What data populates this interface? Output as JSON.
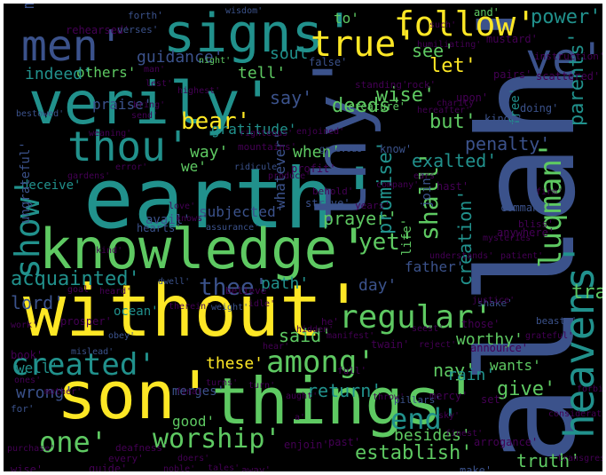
{
  "background_color": "#000000",
  "border_color": "#ffffff",
  "palette": [
    "#440154",
    "#3b528b",
    "#21918c",
    "#5ec962",
    "#fde725"
  ],
  "words": [
    {
      "text": "allah'",
      "color": "#3b528b",
      "vertical": true
    },
    {
      "text": "earth'",
      "color": "#21918c",
      "vertical": false
    },
    {
      "text": "without'",
      "color": "#fde725",
      "vertical": false
    },
    {
      "text": "knowledge'",
      "color": "#5ec962",
      "vertical": false
    },
    {
      "text": "verily'",
      "color": "#21918c",
      "vertical": false
    },
    {
      "text": "son'",
      "color": "#fde725",
      "vertical": false
    },
    {
      "text": "things'",
      "color": "#5ec962",
      "vertical": false
    },
    {
      "text": "thy'",
      "color": "#3b528b",
      "vertical": true
    },
    {
      "text": "signs'",
      "color": "#21918c",
      "vertical": false
    },
    {
      "text": "men'",
      "color": "#3b528b",
      "vertical": false
    },
    {
      "text": "heavens'",
      "color": "#21918c",
      "vertical": true
    },
    {
      "text": "ye'",
      "color": "#3b528b",
      "vertical": false
    },
    {
      "text": "thou'",
      "color": "#21918c",
      "vertical": false
    },
    {
      "text": "show'",
      "color": "#21918c",
      "vertical": true
    },
    {
      "text": "true'",
      "color": "#fde725",
      "vertical": false
    },
    {
      "text": "follow'",
      "color": "#fde725",
      "vertical": false
    },
    {
      "text": "created'",
      "color": "#21918c",
      "vertical": false
    },
    {
      "text": "regular'",
      "color": "#5ec962",
      "vertical": false
    },
    {
      "text": "among'",
      "color": "#5ec962",
      "vertical": false
    },
    {
      "text": "luqman'",
      "color": "#5ec962",
      "vertical": true
    },
    {
      "text": "one'",
      "color": "#5ec962",
      "vertical": false
    },
    {
      "text": "end'",
      "color": "#21918c",
      "vertical": false
    },
    {
      "text": "worship'",
      "color": "#5ec962",
      "vertical": false
    },
    {
      "text": "power'",
      "color": "#21918c",
      "vertical": false
    },
    {
      "text": "bear'",
      "color": "#fde725",
      "vertical": false
    },
    {
      "text": "thee'",
      "color": "#3b528b",
      "vertical": false
    },
    {
      "text": "acquainted'",
      "color": "#21918c",
      "vertical": false
    },
    {
      "text": "lord'",
      "color": "#3b528b",
      "vertical": false
    },
    {
      "text": "these'",
      "color": "#fde725",
      "vertical": false
    },
    {
      "text": "establish'",
      "color": "#5ec962",
      "vertical": false
    },
    {
      "text": "prayer'",
      "color": "#5ec962",
      "vertical": false
    },
    {
      "text": "yet'",
      "color": "#5ec962",
      "vertical": false
    },
    {
      "text": "day'",
      "color": "#3b528b",
      "vertical": false
    },
    {
      "text": "let'",
      "color": "#fde725",
      "vertical": false
    },
    {
      "text": "say'",
      "color": "#3b528b",
      "vertical": false
    },
    {
      "text": "wise'",
      "color": "#5ec962",
      "vertical": false
    },
    {
      "text": "deeds'",
      "color": "#5ec962",
      "vertical": false
    },
    {
      "text": "see'",
      "color": "#5ec962",
      "vertical": false
    },
    {
      "text": "but'",
      "color": "#5ec962",
      "vertical": false
    },
    {
      "text": "penalty'",
      "color": "#3b528b",
      "vertical": false
    },
    {
      "text": "exalted'",
      "color": "#21918c",
      "vertical": false
    },
    {
      "text": "shall'",
      "color": "#5ec962",
      "vertical": true
    },
    {
      "text": "promise'",
      "color": "#21918c",
      "vertical": true
    },
    {
      "text": "travail'",
      "color": "#5ec962",
      "vertical": false
    },
    {
      "text": "parents'",
      "color": "#21918c",
      "vertical": true
    },
    {
      "text": "creation'",
      "color": "#21918c",
      "vertical": true
    },
    {
      "text": "worthy'",
      "color": "#5ec962",
      "vertical": false
    },
    {
      "text": "said'",
      "color": "#5ec962",
      "vertical": false
    },
    {
      "text": "path'",
      "color": "#21918c",
      "vertical": false
    },
    {
      "text": "nay'",
      "color": "#5ec962",
      "vertical": false
    },
    {
      "text": "give'",
      "color": "#5ec962",
      "vertical": false
    },
    {
      "text": "rain'",
      "color": "#21918c",
      "vertical": false
    },
    {
      "text": "return'",
      "color": "#21918c",
      "vertical": false
    },
    {
      "text": "besides'",
      "color": "#5ec962",
      "vertical": false
    },
    {
      "text": "truth'",
      "color": "#5ec962",
      "vertical": false
    },
    {
      "text": "wants'",
      "color": "#5ec962",
      "vertical": false
    },
    {
      "text": "meaning'",
      "color": "#3b528b",
      "vertical": true
    },
    {
      "text": "guidance'",
      "color": "#3b528b",
      "vertical": false
    },
    {
      "text": "others'",
      "color": "#5ec962",
      "vertical": false
    },
    {
      "text": "indeed'",
      "color": "#21918c",
      "vertical": false
    },
    {
      "text": "tell'",
      "color": "#5ec962",
      "vertical": false
    },
    {
      "text": "soul'",
      "color": "#21918c",
      "vertical": false
    },
    {
      "text": "to'",
      "color": "#5ec962",
      "vertical": false
    },
    {
      "text": "praise'",
      "color": "#3b528b",
      "vertical": false
    },
    {
      "text": "gratitude'",
      "color": "#21918c",
      "vertical": false
    },
    {
      "text": "way'",
      "color": "#5ec962",
      "vertical": false
    },
    {
      "text": "when'",
      "color": "#5ec962",
      "vertical": false
    },
    {
      "text": "we'",
      "color": "#5ec962",
      "vertical": false
    },
    {
      "text": "wrong'",
      "color": "#3b528b",
      "vertical": false
    },
    {
      "text": "well'",
      "color": "#21918c",
      "vertical": false
    },
    {
      "text": "good'",
      "color": "#5ec962",
      "vertical": false
    },
    {
      "text": "ocean'",
      "color": "#21918c",
      "vertical": false
    },
    {
      "text": "father'",
      "color": "#3b528b",
      "vertical": false
    },
    {
      "text": "deceive'",
      "color": "#21918c",
      "vertical": false
    },
    {
      "text": "ungrateful'",
      "color": "#3b528b",
      "vertical": true
    },
    {
      "text": "whatever'",
      "color": "#3b528b",
      "vertical": true
    },
    {
      "text": "subjected'",
      "color": "#3b528b",
      "vertical": false
    },
    {
      "text": "avail'",
      "color": "#3b528b",
      "vertical": false
    },
    {
      "text": "merges'",
      "color": "#3b528b",
      "vertical": false
    },
    {
      "text": "join'",
      "color": "#3b528b",
      "vertical": true
    },
    {
      "text": "life'",
      "color": "#5ec962",
      "vertical": true
    },
    {
      "text": "free'",
      "color": "#21918c",
      "vertical": true
    },
    {
      "text": "know'",
      "color": "#3b528b",
      "vertical": false
    },
    {
      "text": "and'",
      "color": "#5ec962",
      "vertical": false
    },
    {
      "text": "forth'",
      "color": "#3b528b",
      "vertical": false
    },
    {
      "text": "wisdom'",
      "color": "#3b528b",
      "vertical": false
    },
    {
      "text": "rehearsed'",
      "color": "#440154",
      "vertical": false
    },
    {
      "text": "verses'",
      "color": "#3b528b",
      "vertical": false
    },
    {
      "text": "false'",
      "color": "#3b528b",
      "vertical": false
    },
    {
      "text": "night'",
      "color": "#5ec962",
      "vertical": false
    },
    {
      "text": "mustard'",
      "color": "#440154",
      "vertical": false
    },
    {
      "text": "instruction'",
      "color": "#440154",
      "vertical": false
    },
    {
      "text": "scattered'",
      "color": "#440154",
      "vertical": false
    },
    {
      "text": "pairs'",
      "color": "#440154",
      "vertical": false
    },
    {
      "text": "doing'",
      "color": "#3b528b",
      "vertical": false
    },
    {
      "text": "charity'",
      "color": "#440154",
      "vertical": false
    },
    {
      "text": "hereafter'",
      "color": "#440154",
      "vertical": false
    },
    {
      "text": "upon'",
      "color": "#440154",
      "vertical": false
    },
    {
      "text": "creature'",
      "color": "#5ec962",
      "vertical": false
    },
    {
      "text": "kinds'",
      "color": "#3b528b",
      "vertical": false
    },
    {
      "text": "bestowed'",
      "color": "#3b528b",
      "vertical": false
    },
    {
      "text": "error'",
      "color": "#440154",
      "vertical": false
    },
    {
      "text": "mountains'",
      "color": "#440154",
      "vertical": false
    },
    {
      "text": "grievous'",
      "color": "#3b528b",
      "vertical": false
    },
    {
      "text": "profit'",
      "color": "#440154",
      "vertical": false
    },
    {
      "text": "ridicule'",
      "color": "#3b528b",
      "vertical": false
    },
    {
      "text": "behold'",
      "color": "#440154",
      "vertical": false
    },
    {
      "text": "years'",
      "color": "#440154",
      "vertical": false
    },
    {
      "text": "strive'",
      "color": "#3b528b",
      "vertical": false
    },
    {
      "text": "hearts'",
      "color": "#3b528b",
      "vertical": false
    },
    {
      "text": "assurance'",
      "color": "#3b528b",
      "vertical": false
    },
    {
      "text": "kind'",
      "color": "#440154",
      "vertical": false
    },
    {
      "text": "goal'",
      "color": "#440154",
      "vertical": false
    },
    {
      "text": "heard'",
      "color": "#440154",
      "vertical": false
    },
    {
      "text": "believe'",
      "color": "#440154",
      "vertical": false
    },
    {
      "text": "dwell'",
      "color": "#3b528b",
      "vertical": false
    },
    {
      "text": "therein'",
      "color": "#440154",
      "vertical": false
    },
    {
      "text": "weight'",
      "color": "#3b528b",
      "vertical": false
    },
    {
      "text": "idle'",
      "color": "#440154",
      "vertical": false
    },
    {
      "text": "prosper'",
      "color": "#440154",
      "vertical": false
    },
    {
      "text": "obey'",
      "color": "#3b528b",
      "vertical": false
    },
    {
      "text": "book'",
      "color": "#440154",
      "vertical": false
    },
    {
      "text": "mislead'",
      "color": "#3b528b",
      "vertical": false
    },
    {
      "text": "hear'",
      "color": "#440154",
      "vertical": false
    },
    {
      "text": "turn'",
      "color": "#440154",
      "vertical": false
    },
    {
      "text": "turns'",
      "color": "#440154",
      "vertical": false
    },
    {
      "text": "final'",
      "color": "#440154",
      "vertical": false
    },
    {
      "text": "mother'",
      "color": "#440154",
      "vertical": false
    },
    {
      "text": "for'",
      "color": "#3b528b",
      "vertical": false
    },
    {
      "text": "purchase'",
      "color": "#440154",
      "vertical": false
    },
    {
      "text": "wise'",
      "color": "#440154",
      "vertical": false
    },
    {
      "text": "guide'",
      "color": "#440154",
      "vertical": false
    },
    {
      "text": "deafness'",
      "color": "#440154",
      "vertical": false
    },
    {
      "text": "every'",
      "color": "#440154",
      "vertical": false
    },
    {
      "text": "doers'",
      "color": "#440154",
      "vertical": false
    },
    {
      "text": "noble'",
      "color": "#440154",
      "vertical": false
    },
    {
      "text": "tales'",
      "color": "#440154",
      "vertical": false
    },
    {
      "text": "away'",
      "color": "#440154",
      "vertical": false
    },
    {
      "text": "enjoin'",
      "color": "#440154",
      "vertical": false
    },
    {
      "text": "past'",
      "color": "#440154",
      "vertical": false
    },
    {
      "text": "make'",
      "color": "#3b528b",
      "vertical": false
    },
    {
      "text": "arrogance'",
      "color": "#440154",
      "vertical": false
    },
    {
      "text": "finest'",
      "color": "#440154",
      "vertical": false
    },
    {
      "text": "set'",
      "color": "#440154",
      "vertical": false
    },
    {
      "text": "sky'",
      "color": "#440154",
      "vertical": false
    },
    {
      "text": "mercy'",
      "color": "#440154",
      "vertical": false
    },
    {
      "text": "pillars'",
      "color": "#3b528b",
      "vertical": false
    },
    {
      "text": "throw'",
      "color": "#440154",
      "vertical": false
    },
    {
      "text": "announce'",
      "color": "#440154",
      "vertical": false
    },
    {
      "text": "beasts'",
      "color": "#3b528b",
      "vertical": false
    },
    {
      "text": "those'",
      "color": "#440154",
      "vertical": false
    },
    {
      "text": "shake'",
      "color": "#3b528b",
      "vertical": false
    },
    {
      "text": "seest'",
      "color": "#440154",
      "vertical": false
    },
    {
      "text": "twain'",
      "color": "#440154",
      "vertical": false
    },
    {
      "text": "reject'",
      "color": "#440154",
      "vertical": false
    },
    {
      "text": "he'",
      "color": "#440154",
      "vertical": false
    },
    {
      "text": "manifest'",
      "color": "#440154",
      "vertical": false
    },
    {
      "text": "full'",
      "color": "#440154",
      "vertical": false
    },
    {
      "text": "grateful'",
      "color": "#440154",
      "vertical": false
    },
    {
      "text": "justice'",
      "color": "#440154",
      "vertical": false
    },
    {
      "text": "understands'",
      "color": "#440154",
      "vertical": false
    },
    {
      "text": "anywhere'",
      "color": "#440154",
      "vertical": false
    },
    {
      "text": "command'",
      "color": "#3b528b",
      "vertical": false
    },
    {
      "text": "bliss'",
      "color": "#440154",
      "vertical": false
    },
    {
      "text": "firm'",
      "color": "#440154",
      "vertical": false
    },
    {
      "text": "patient'",
      "color": "#440154",
      "vertical": false
    },
    {
      "text": "mysteries'",
      "color": "#440154",
      "vertical": false
    },
    {
      "text": "hast'",
      "color": "#440154",
      "vertical": false
    },
    {
      "text": "ears'",
      "color": "#440154",
      "vertical": false
    },
    {
      "text": "enjoined'",
      "color": "#440154",
      "vertical": false
    },
    {
      "text": "righteous'",
      "color": "#440154",
      "vertical": false
    },
    {
      "text": "rock'",
      "color": "#440154",
      "vertical": false
    },
    {
      "text": "humiliating'",
      "color": "#440154",
      "vertical": false
    },
    {
      "text": "such'",
      "color": "#440154",
      "vertical": false
    },
    {
      "text": "standing'",
      "color": "#440154",
      "vertical": false
    },
    {
      "text": "man'",
      "color": "#440154",
      "vertical": false
    },
    {
      "text": "lest'",
      "color": "#440154",
      "vertical": false
    },
    {
      "text": "highest'",
      "color": "#440154",
      "vertical": false
    },
    {
      "text": "bring'",
      "color": "#440154",
      "vertical": false
    },
    {
      "text": "send'",
      "color": "#440154",
      "vertical": false
    },
    {
      "text": "weaning'",
      "color": "#440154",
      "vertical": false
    },
    {
      "text": "gardens'",
      "color": "#440154",
      "vertical": false
    },
    {
      "text": "knows'",
      "color": "#440154",
      "vertical": false
    },
    {
      "text": "love'",
      "color": "#440154",
      "vertical": false
    },
    {
      "text": "produce'",
      "color": "#440154",
      "vertical": false
    },
    {
      "text": "work'",
      "color": "#440154",
      "vertical": false
    },
    {
      "text": "ones'",
      "color": "#440154",
      "vertical": false
    },
    {
      "text": "forbid'",
      "color": "#440154",
      "vertical": false
    },
    {
      "text": "transgressors'",
      "color": "#440154",
      "vertical": false
    },
    {
      "text": "consideration'",
      "color": "#440154",
      "vertical": false
    },
    {
      "text": "company'",
      "color": "#440154",
      "vertical": false
    },
    {
      "text": "a'",
      "color": "#440154",
      "vertical": false
    },
    {
      "text": "aught'",
      "color": "#440154",
      "vertical": false
    },
    {
      "text": "hidden'",
      "color": "#440154",
      "vertical": false
    },
    {
      "text": "good'",
      "color": "#440154",
      "vertical": false
    }
  ]
}
